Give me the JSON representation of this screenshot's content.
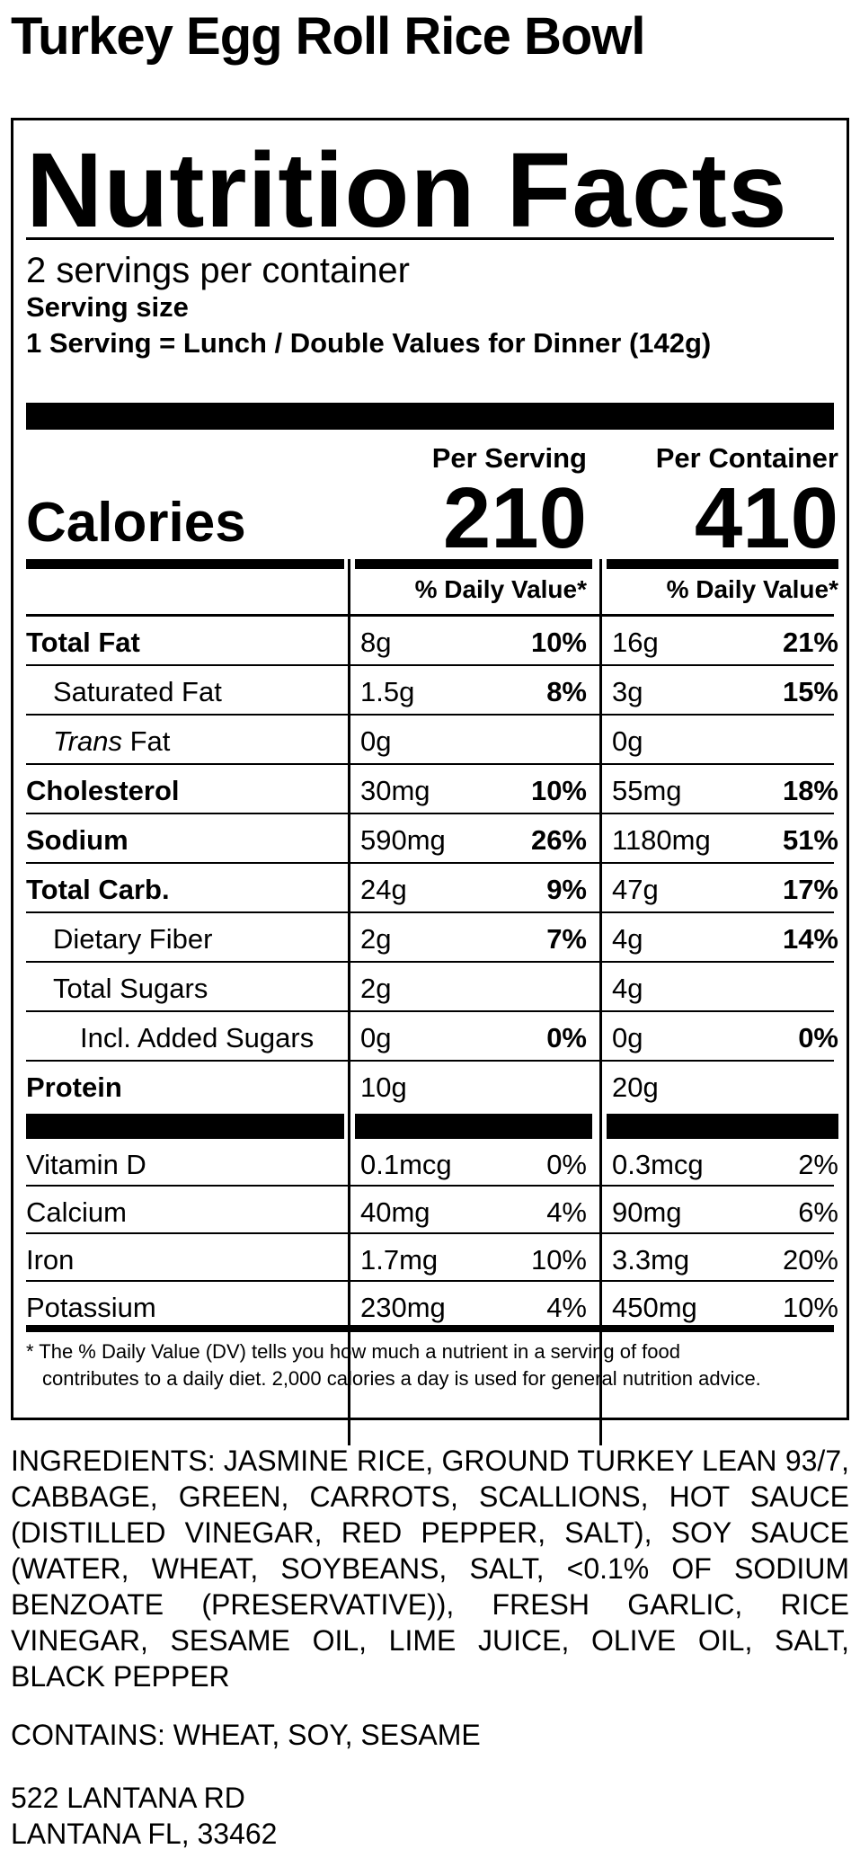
{
  "product_title": "Turkey Egg Roll Rice Bowl",
  "label": {
    "title": "Nutrition Facts",
    "servings_per_container": "2 servings per container",
    "serving_size_label": "Serving size",
    "serving_size_value": "1 Serving = Lunch / Double Values for Dinner (142g)",
    "col_per_serving": "Per Serving",
    "col_per_container": "Per Container",
    "calories_label": "Calories",
    "calories_serving": "210",
    "calories_container": "410",
    "dv_header": "% Daily Value*",
    "nutrients": [
      {
        "name": "Total Fat",
        "serving_amt": "8g",
        "serving_dv": "10%",
        "container_amt": "16g",
        "container_dv": "21%"
      },
      {
        "name": "Saturated Fat",
        "serving_amt": "1.5g",
        "serving_dv": "8%",
        "container_amt": "3g",
        "container_dv": "15%"
      },
      {
        "name_italic": "Trans",
        "name_rest": " Fat",
        "serving_amt": "0g",
        "serving_dv": "",
        "container_amt": "0g",
        "container_dv": ""
      },
      {
        "name": "Cholesterol",
        "serving_amt": "30mg",
        "serving_dv": "10%",
        "container_amt": "55mg",
        "container_dv": "18%"
      },
      {
        "name": "Sodium",
        "serving_amt": "590mg",
        "serving_dv": "26%",
        "container_amt": "1180mg",
        "container_dv": "51%"
      },
      {
        "name": "Total Carb.",
        "serving_amt": "24g",
        "serving_dv": "9%",
        "container_amt": "47g",
        "container_dv": "17%"
      },
      {
        "name": "Dietary Fiber",
        "serving_amt": "2g",
        "serving_dv": "7%",
        "container_amt": "4g",
        "container_dv": "14%"
      },
      {
        "name": "Total Sugars",
        "serving_amt": "2g",
        "serving_dv": "",
        "container_amt": "4g",
        "container_dv": ""
      },
      {
        "name": "Incl. Added Sugars",
        "serving_amt": "0g",
        "serving_dv": "0%",
        "container_amt": "0g",
        "container_dv": "0%"
      },
      {
        "name": "Protein",
        "serving_amt": "10g",
        "serving_dv": "",
        "container_amt": "20g",
        "container_dv": ""
      }
    ],
    "vitamins": [
      {
        "name": "Vitamin D",
        "serving_amt": "0.1mcg",
        "serving_dv": "0%",
        "container_amt": "0.3mcg",
        "container_dv": "2%"
      },
      {
        "name": "Calcium",
        "serving_amt": "40mg",
        "serving_dv": "4%",
        "container_amt": "90mg",
        "container_dv": "6%"
      },
      {
        "name": "Iron",
        "serving_amt": "1.7mg",
        "serving_dv": "10%",
        "container_amt": "3.3mg",
        "container_dv": "20%"
      },
      {
        "name": "Potassium",
        "serving_amt": "230mg",
        "serving_dv": "4%",
        "container_amt": "450mg",
        "container_dv": "10%"
      }
    ],
    "footnote_line1": "* The % Daily Value (DV) tells you how much a nutrient in a serving of food",
    "footnote_line2": "contributes to a daily diet. 2,000 calories a day is used for general nutrition advice."
  },
  "ingredients": "INGREDIENTS: JASMINE RICE, GROUND TURKEY LEAN 93/7, CABBAGE, GREEN, CARROTS, SCALLIONS, HOT SAUCE (DISTILLED VINEGAR, RED PEPPER, SALT), SOY SAUCE (WATER, WHEAT, SOYBEANS, SALT, <0.1% OF SODIUM BENZOATE (PRESERVATIVE)), FRESH GARLIC, RICE VINEGAR, SESAME OIL, LIME JUICE, OLIVE OIL, SALT, BLACK PEPPER",
  "contains": "CONTAINS: WHEAT, SOY, SESAME",
  "address_line1": "522 LANTANA RD",
  "address_line2": "LANTANA FL, 33462"
}
